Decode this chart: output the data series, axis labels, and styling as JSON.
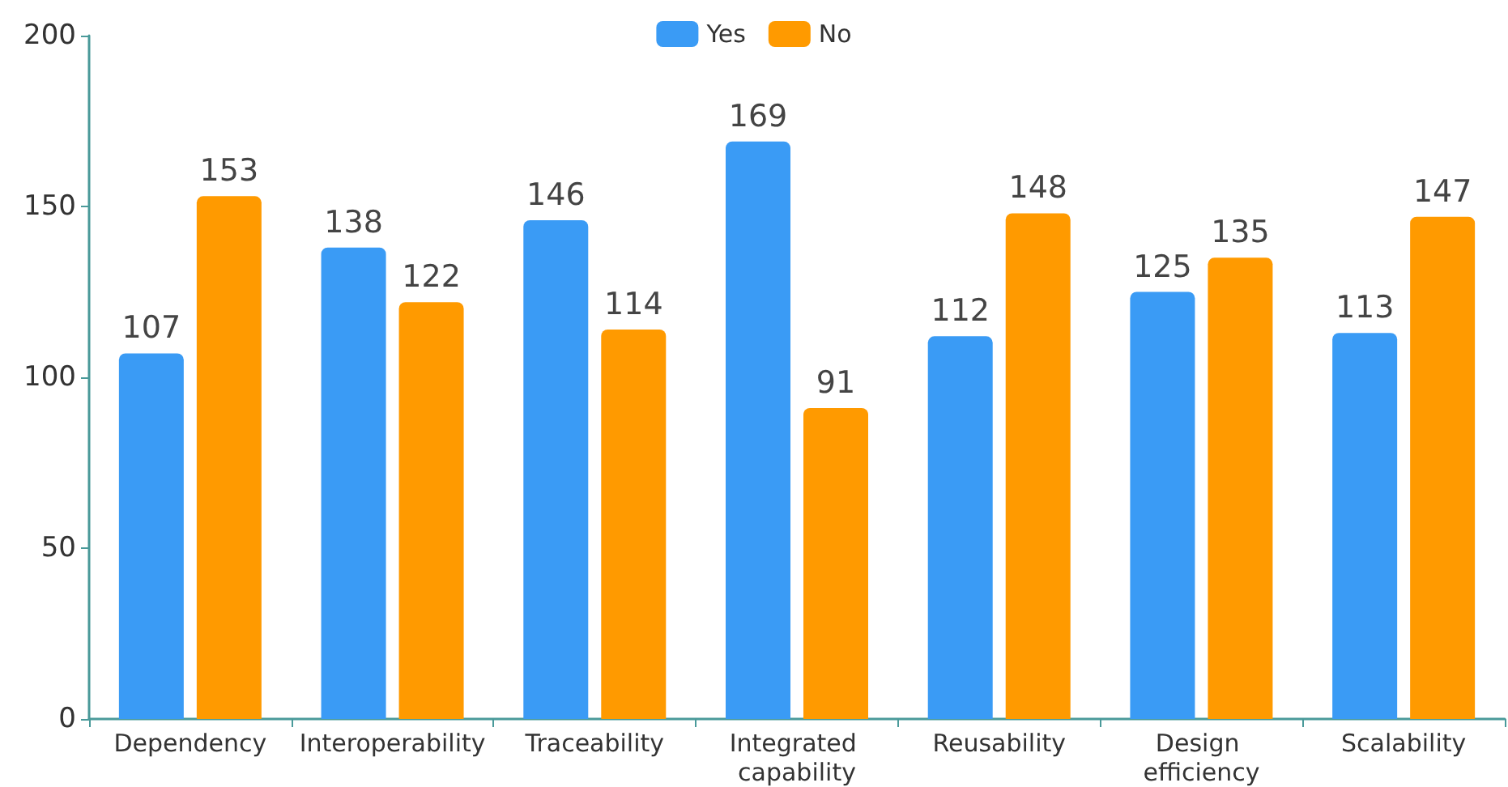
{
  "chart_data": {
    "type": "bar",
    "categories": [
      "Dependency",
      "Interoperability",
      "Traceability",
      "Integrated capability",
      "Reusability",
      "Design efficiency",
      "Scalability"
    ],
    "series": [
      {
        "name": "Yes",
        "color": "#3a9bf5",
        "values": [
          107,
          138,
          146,
          169,
          112,
          125,
          113
        ]
      },
      {
        "name": "No",
        "color": "#ff9a00",
        "values": [
          153,
          122,
          114,
          91,
          148,
          135,
          147
        ]
      }
    ],
    "ylim": [
      0,
      200
    ],
    "yticks": [
      0,
      50,
      100,
      150,
      200
    ],
    "grid": false,
    "legend": "top",
    "data_labels": true
  }
}
